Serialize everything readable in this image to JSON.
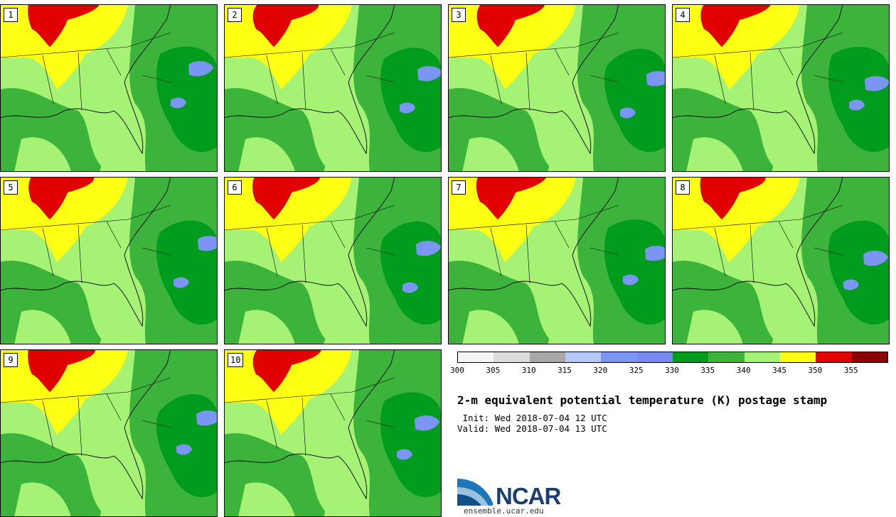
{
  "panels": [
    {
      "label": "1"
    },
    {
      "label": "2"
    },
    {
      "label": "3"
    },
    {
      "label": "4"
    },
    {
      "label": "5"
    },
    {
      "label": "6"
    },
    {
      "label": "7"
    },
    {
      "label": "8"
    },
    {
      "label": "9"
    },
    {
      "label": "10"
    }
  ],
  "colorbar": {
    "ticks": [
      "300",
      "305",
      "310",
      "315",
      "320",
      "325",
      "330",
      "335",
      "340",
      "345",
      "350",
      "355"
    ],
    "colors": [
      "#f5f5f5",
      "#dcdcdc",
      "#a8a8a8",
      "#b4c8fa",
      "#7b96f2",
      "#7b88ef",
      "#009c1e",
      "#3cb43c",
      "#a5f274",
      "#ffff14",
      "#e10000",
      "#8b0000"
    ]
  },
  "title": "2-m equivalent potential temperature (K) postage stamp",
  "init": " Init: Wed 2018-07-04 12 UTC",
  "valid": "Valid: Wed 2018-07-04 13 UTC",
  "logo": {
    "text": "NCAR",
    "url": "ensemble.ucar.edu"
  }
}
